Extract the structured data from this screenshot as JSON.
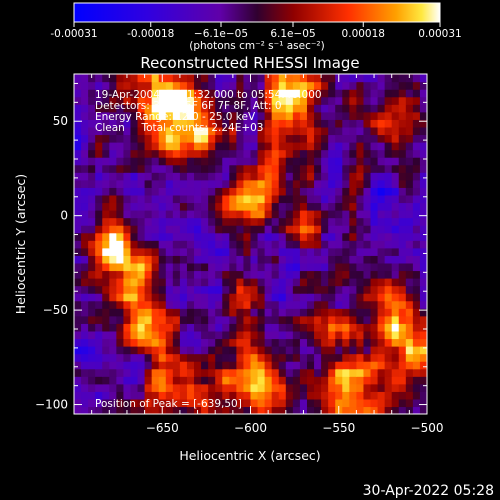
{
  "chart_data": {
    "type": "heatmap",
    "title": "Reconstructed RHESSI Image",
    "xlabel": "Heliocentric X (arcsec)",
    "ylabel": "Heliocentric Y (arcsec)",
    "xlim": [
      -700,
      -500
    ],
    "ylim": [
      -105,
      75
    ],
    "x_ticks": [
      -650,
      -600,
      -550,
      -500
    ],
    "y_ticks": [
      -100,
      -50,
      0,
      50
    ],
    "colorbar": {
      "min": -0.00031,
      "max": 0.00031,
      "tick_values": [
        -0.00031,
        -0.00018,
        -6.1e-05,
        6.1e-05,
        0.00018,
        0.00031
      ],
      "tick_labels": [
        "-0.00031",
        "-0.00018",
        "−6.1e−05",
        "6.1e−05",
        "0.00018",
        "0.00031"
      ],
      "unit_label": "(photons cm⁻² s⁻¹ asec⁻²)"
    },
    "annotations": [
      "19-Apr-2004 05:51:32.000 to 05:54:48.000",
      "Detectors: 3F 4F 5F 6F 7F 8F, Att: 0",
      "Energy Range: 12.0 - 25.0 keV",
      "Clean     Total counts: 2.24E+03"
    ],
    "peak_label": "Position of Peak = [-639,50]",
    "peak_position": [
      -639,
      50
    ],
    "hotspots": [
      {
        "x": -650,
        "y": 58,
        "w": 14,
        "v": 1.0
      },
      {
        "x": -635,
        "y": 40,
        "w": 10,
        "v": 0.75
      },
      {
        "x": -580,
        "y": 60,
        "w": 14,
        "v": 0.85
      },
      {
        "x": -590,
        "y": 20,
        "w": 10,
        "v": 0.6
      },
      {
        "x": -605,
        "y": 5,
        "w": 9,
        "v": 0.7
      },
      {
        "x": -575,
        "y": -10,
        "w": 9,
        "v": 0.55
      },
      {
        "x": -680,
        "y": -15,
        "w": 10,
        "v": 0.65
      },
      {
        "x": -670,
        "y": -35,
        "w": 12,
        "v": 0.75
      },
      {
        "x": -660,
        "y": -60,
        "w": 10,
        "v": 0.8
      },
      {
        "x": -650,
        "y": -95,
        "w": 14,
        "v": 0.7
      },
      {
        "x": -600,
        "y": -90,
        "w": 14,
        "v": 0.75
      },
      {
        "x": -545,
        "y": -95,
        "w": 14,
        "v": 0.8
      },
      {
        "x": -515,
        "y": -70,
        "w": 12,
        "v": 0.85
      },
      {
        "x": -525,
        "y": -45,
        "w": 10,
        "v": 0.6
      },
      {
        "x": -555,
        "y": -60,
        "w": 9,
        "v": 0.5
      },
      {
        "x": -610,
        "y": -45,
        "w": 9,
        "v": 0.5
      },
      {
        "x": -520,
        "y": 50,
        "w": 12,
        "v": 0.55
      },
      {
        "x": -540,
        "y": 25,
        "w": 9,
        "v": 0.4
      }
    ]
  },
  "footer": {
    "timestamp": "30-Apr-2022 05:28"
  },
  "colors": {
    "background": "#000000",
    "foreground": "#ffffff"
  }
}
